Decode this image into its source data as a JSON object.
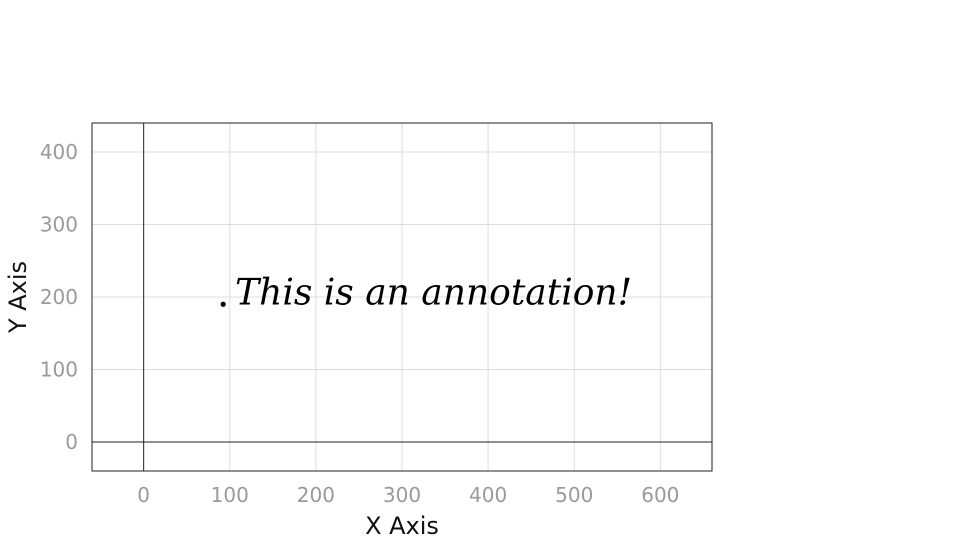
{
  "chart_data": {
    "type": "scatter",
    "title": "",
    "xlabel": "X Axis",
    "ylabel": "Y Axis",
    "xlim": [
      -60,
      660
    ],
    "ylim": [
      -40,
      440
    ],
    "x_ticks": [
      0,
      100,
      200,
      300,
      400,
      500,
      600
    ],
    "y_ticks": [
      0,
      100,
      200,
      300,
      400
    ],
    "grid": true,
    "zero_lines": true,
    "series": [],
    "annotations": [
      {
        "x": 90,
        "y": 190,
        "text": "This is an annotation!",
        "marker": "."
      }
    ]
  }
}
